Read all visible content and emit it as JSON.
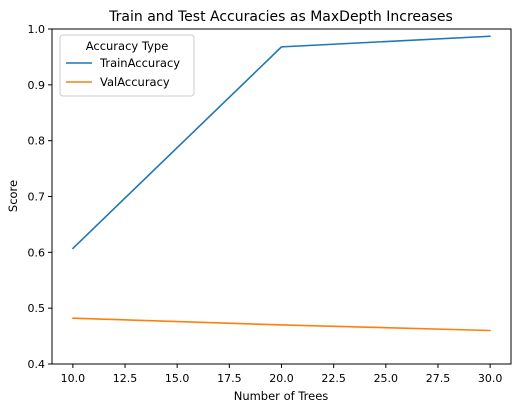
{
  "chart_data": {
    "type": "line",
    "title": "Train and Test Accuracies as MaxDepth Increases",
    "xlabel": "Number of Trees",
    "ylabel": "Score",
    "xlim": [
      9.0,
      31.0
    ],
    "ylim": [
      0.4,
      1.0
    ],
    "xticks": [
      "10.0",
      "12.5",
      "15.0",
      "17.5",
      "20.0",
      "22.5",
      "25.0",
      "27.5",
      "30.0"
    ],
    "yticks": [
      "0.4",
      "0.5",
      "0.6",
      "0.7",
      "0.8",
      "0.9",
      "1.0"
    ],
    "x": [
      10,
      20,
      30
    ],
    "series": [
      {
        "name": "TrainAccuracy",
        "values": [
          0.607,
          0.968,
          0.987
        ],
        "color": "#1f77b4"
      },
      {
        "name": "ValAccuracy",
        "values": [
          0.482,
          0.47,
          0.46
        ],
        "color": "#ff7f0e"
      }
    ],
    "legend": {
      "title": "Accuracy Type",
      "position": "top-left"
    },
    "grid": false
  }
}
